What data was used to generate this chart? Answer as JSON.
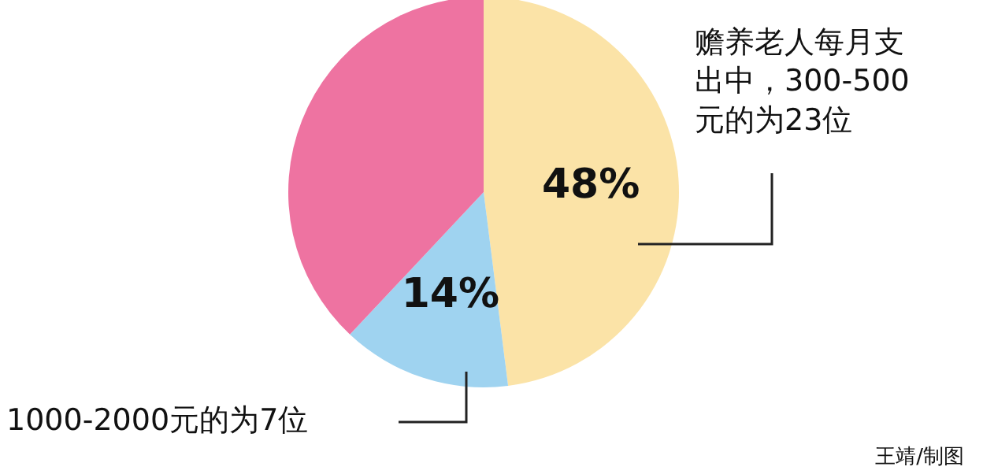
{
  "chart_data": {
    "type": "pie",
    "categories": [
      null,
      null,
      null
    ],
    "values": [
      48,
      14,
      38
    ],
    "colors": [
      "#fbe3a7",
      "#9fd3f0",
      "#ee73a1"
    ],
    "value_labels": [
      "48%",
      "14%",
      null
    ],
    "annotations": [
      "赡养老人每月支出中，300-500元的为23位",
      "1000-2000元的为7位",
      "王靖/制图"
    ]
  }
}
